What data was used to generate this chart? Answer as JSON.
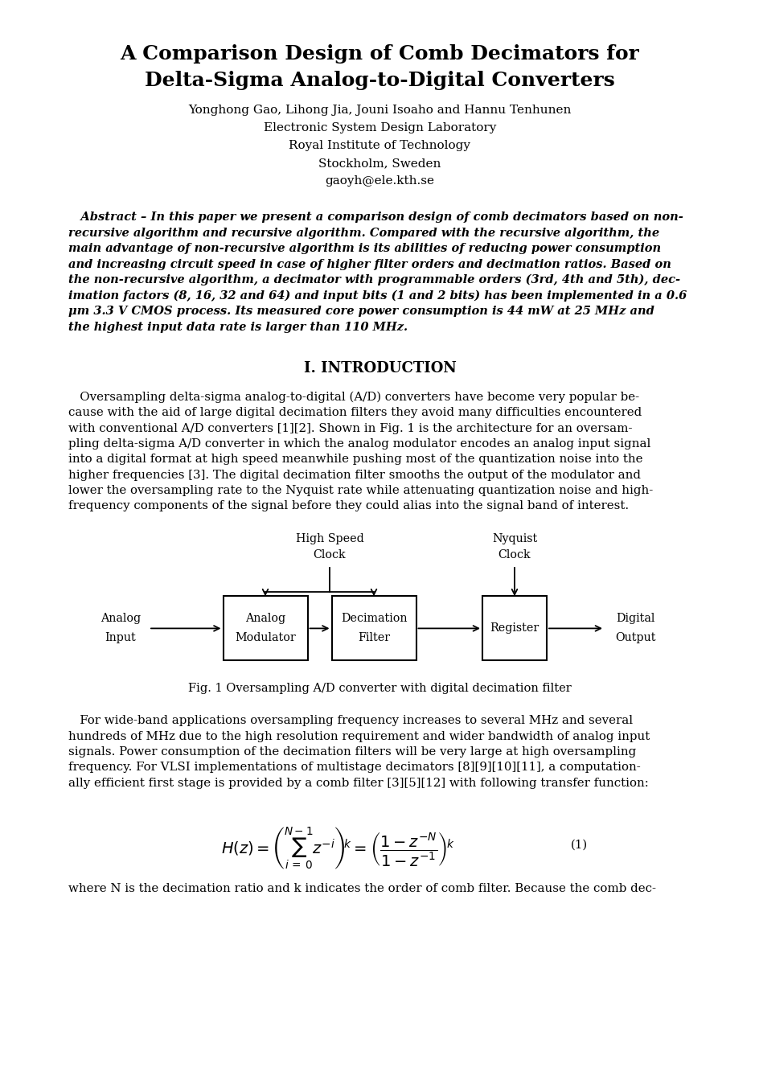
{
  "title_line1": "A Comparison Design of Comb Decimators for",
  "title_line2": "Delta-Sigma Analog-to-Digital Converters",
  "author_line": "Yonghong Gao, Lihong Jia, Jouni Isoaho and Hannu Tenhunen",
  "affil1": "Electronic System Design Laboratory",
  "affil2": "Royal Institute of Technology",
  "affil3": "Stockholm, Sweden",
  "affil4": "gaoyh@ele.kth.se",
  "abstract_lines": [
    "   Abstract – In this paper we present a comparison design of comb decimators based on non-",
    "recursive algorithm and recursive algorithm. Compared with the recursive algorithm, the",
    "main advantage of non-recursive algorithm is its abilities of reducing power consumption",
    "and increasing circuit speed in case of higher filter orders and decimation ratios. Based on",
    "the non-recursive algorithm, a decimator with programmable orders (3rd, 4th and 5th), dec-",
    "imation factors (8, 16, 32 and 64) and input bits (1 and 2 bits) has been implemented in a 0.6",
    "μm 3.3 V CMOS process. Its measured core power consumption is 44 mW at 25 MHz and",
    "the highest input data rate is larger than 110 MHz."
  ],
  "section1_title": "I. INTRODUCTION",
  "para1_lines": [
    "   Oversampling delta-sigma analog-to-digital (A/D) converters have become very popular be-",
    "cause with the aid of large digital decimation filters they avoid many difficulties encountered",
    "with conventional A/D converters [1][2]. Shown in Fig. 1 is the architecture for an oversam-",
    "pling delta-sigma A/D converter in which the analog modulator encodes an analog input signal",
    "into a digital format at high speed meanwhile pushing most of the quantization noise into the",
    "higher frequencies [3]. The digital decimation filter smooths the output of the modulator and",
    "lower the oversampling rate to the Nyquist rate while attenuating quantization noise and high-",
    "frequency components of the signal before they could alias into the signal band of interest."
  ],
  "fig1_caption": "Fig. 1 Oversampling A/D converter with digital decimation filter",
  "para2_lines": [
    "   For wide-band applications oversampling frequency increases to several MHz and several",
    "hundreds of MHz due to the high resolution requirement and wider bandwidth of analog input",
    "signals. Power consumption of the decimation filters will be very large at high oversampling",
    "frequency. For VLSI implementations of multistage decimators [8][9][10][11], a computation-",
    "ally efficient first stage is provided by a comb filter [3][5][12] with following transfer function:"
  ],
  "eq_label": "(1)",
  "para3_line": "where N is the decimation ratio and k indicates the order of comb filter. Because the comb dec-",
  "bg_color": "#ffffff",
  "text_color": "#000000",
  "page_width": 9.45,
  "page_height": 13.38
}
